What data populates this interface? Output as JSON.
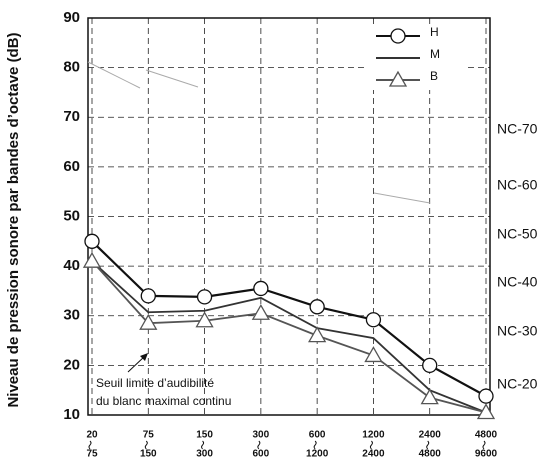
{
  "chart_data": {
    "type": "line",
    "y_label": "Niveau de pression sonore par bandes d’octave (dB)",
    "categories": [
      {
        "low": "20",
        "high": "75"
      },
      {
        "low": "75",
        "high": "150"
      },
      {
        "low": "150",
        "high": "300"
      },
      {
        "low": "300",
        "high": "600"
      },
      {
        "low": "600",
        "high": "1200"
      },
      {
        "low": "1200",
        "high": "2400"
      },
      {
        "low": "2400",
        "high": "4800"
      },
      {
        "low": "4800",
        "high": "9600"
      }
    ],
    "series": [
      {
        "name": "H",
        "color": "#111111",
        "marker": "circle",
        "values": [
          45,
          34,
          33.8,
          35.5,
          31.8,
          29.2,
          20,
          13.8
        ]
      },
      {
        "name": "M",
        "color": "#333333",
        "marker": "none",
        "values": [
          41,
          30.7,
          31,
          33.6,
          27.5,
          25.5,
          15,
          10.5
        ]
      },
      {
        "name": "B",
        "color": "#555555",
        "marker": "triangle",
        "values": [
          41,
          28.5,
          29,
          30.5,
          26,
          22,
          13.5,
          10.5
        ]
      }
    ],
    "ylim": [
      10,
      90
    ],
    "yticks": [
      10,
      20,
      30,
      40,
      50,
      60,
      70,
      80,
      90
    ],
    "grid": true,
    "nc_labels": [
      "NC-70",
      "NC-60",
      "NC-50",
      "NC-40",
      "NC-30",
      "NC-20"
    ],
    "annotation": [
      "Seuil limite d’audibilité",
      "du blanc maximal continu"
    ]
  }
}
